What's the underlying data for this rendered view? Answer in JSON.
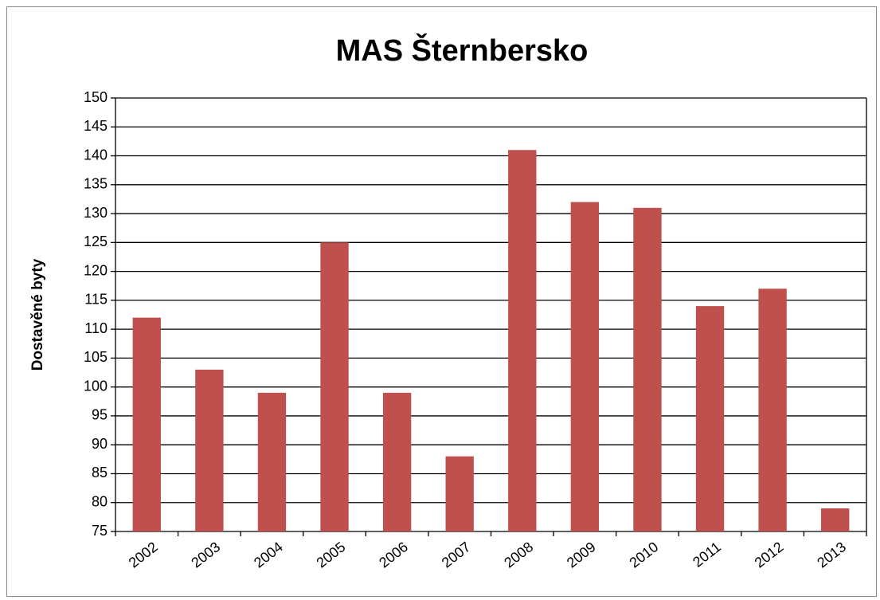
{
  "chart_data": {
    "type": "bar",
    "title": "MAS Šternbersko",
    "y_label": "Dostavěné byty",
    "categories": [
      "2002",
      "2003",
      "2004",
      "2005",
      "2006",
      "2007",
      "2008",
      "2009",
      "2010",
      "2011",
      "2012",
      "2013"
    ],
    "values": [
      112,
      103,
      99,
      125,
      99,
      88,
      141,
      132,
      131,
      114,
      117,
      79
    ],
    "color": "#c0504d",
    "ylim": [
      75,
      150
    ],
    "yticks": [
      75,
      80,
      85,
      90,
      95,
      100,
      105,
      110,
      115,
      120,
      125,
      130,
      135,
      140,
      145,
      150
    ],
    "grid": true
  }
}
